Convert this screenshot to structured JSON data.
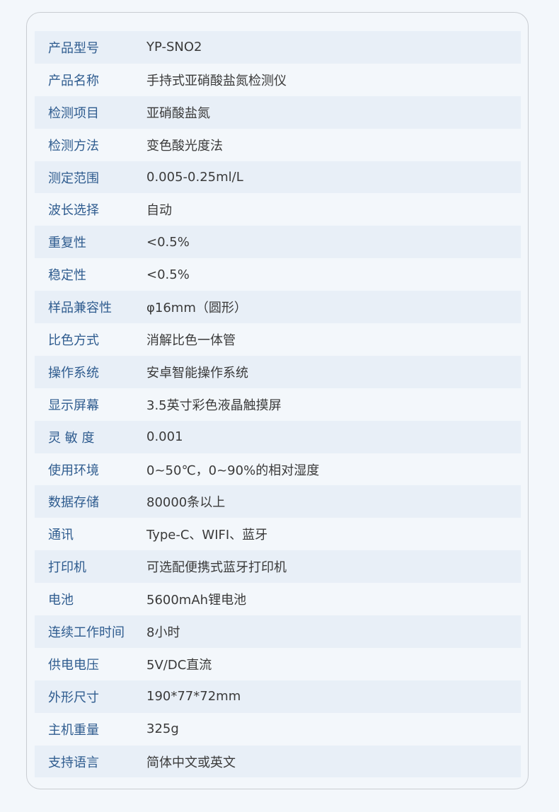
{
  "specs": [
    {
      "label": "产品型号",
      "value": "YP-SNO2"
    },
    {
      "label": "产品名称",
      "value": "手持式亚硝酸盐氮检测仪"
    },
    {
      "label": "检测项目",
      "value": "亚硝酸盐氮"
    },
    {
      "label": "检测方法",
      "value": "变色酸光度法"
    },
    {
      "label": "测定范围",
      "value": "0.005-0.25ml/L"
    },
    {
      "label": "波长选择",
      "value": "自动"
    },
    {
      "label": "重复性",
      "value": "<0.5%"
    },
    {
      "label": "稳定性",
      "value": "<0.5%"
    },
    {
      "label": "样品兼容性",
      "value": "φ16mm（圆形）"
    },
    {
      "label": "比色方式",
      "value": "消解比色一体管"
    },
    {
      "label": "操作系统",
      "value": "安卓智能操作系统"
    },
    {
      "label": "显示屏幕",
      "value": "3.5英寸彩色液晶触摸屏"
    },
    {
      "label": "灵 敏 度",
      "value": "0.001"
    },
    {
      "label": "使用环境",
      "value": "0~50℃，0~90%的相对湿度"
    },
    {
      "label": "数据存储",
      "value": "80000条以上"
    },
    {
      "label": "通讯",
      "value": "Type-C、WIFI、蓝牙"
    },
    {
      "label": "打印机",
      "value": "可选配便携式蓝牙打印机"
    },
    {
      "label": "电池",
      "value": "5600mAh锂电池"
    },
    {
      "label": "连续工作时间",
      "value": "8小时"
    },
    {
      "label": "供电电压",
      "value": "5V/DC直流"
    },
    {
      "label": "外形尺寸",
      "value": "190*77*72mm"
    },
    {
      "label": "主机重量",
      "value": "325g"
    },
    {
      "label": "支持语言",
      "value": "简体中文或英文"
    }
  ]
}
